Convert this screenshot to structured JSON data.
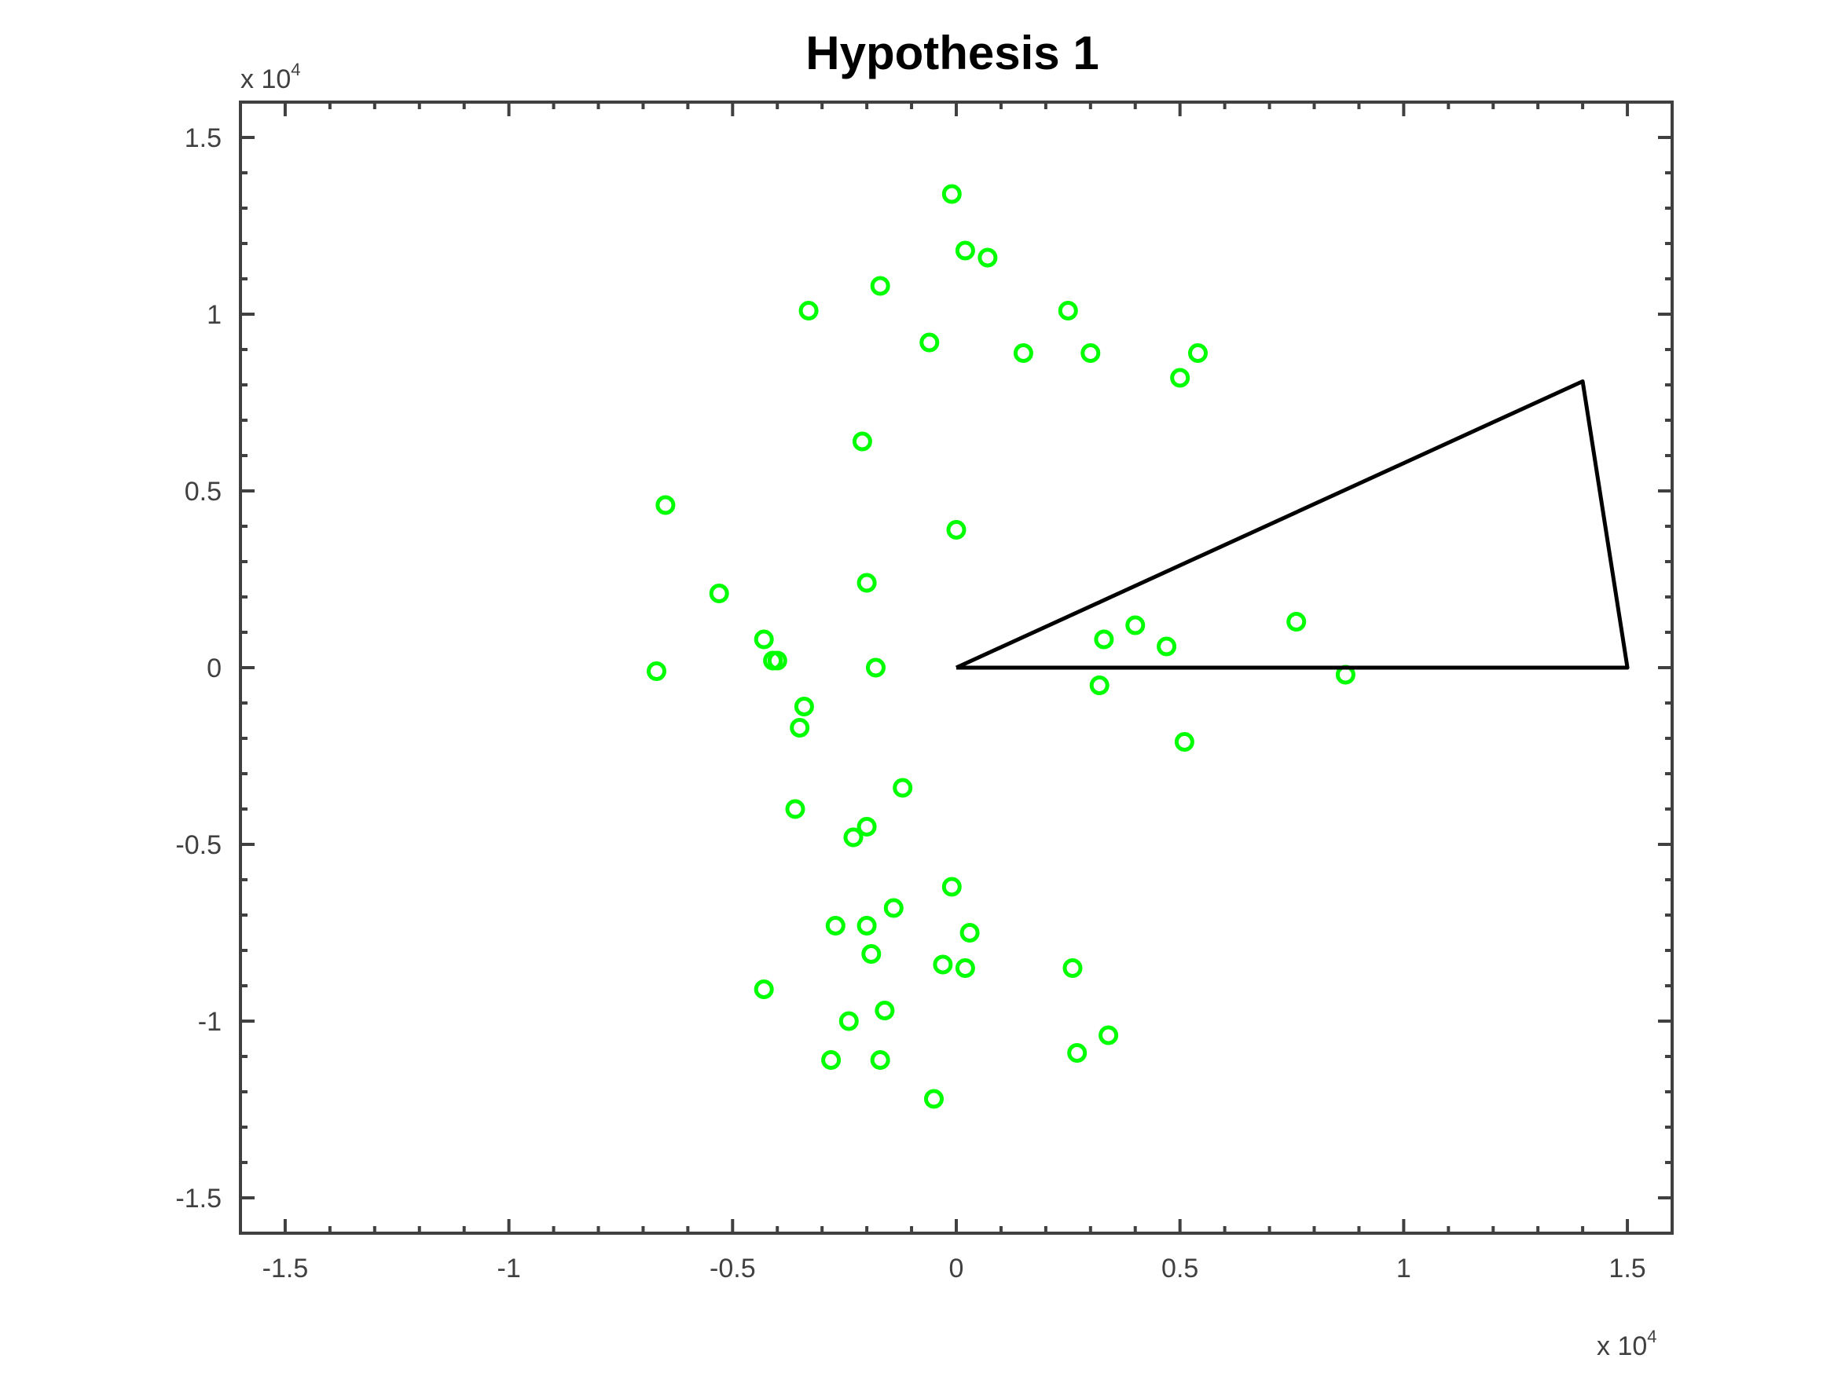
{
  "chart_data": {
    "type": "scatter",
    "title": "Hypothesis 1",
    "xlabel": "",
    "ylabel": "",
    "xlim": [
      -1.6,
      1.6
    ],
    "ylim": [
      -1.6,
      1.6
    ],
    "scale_factor": {
      "base": "x 10",
      "exponent": "4"
    },
    "xticks": [
      -1.5,
      -1,
      -0.5,
      0,
      0.5,
      1,
      1.5
    ],
    "yticks": [
      -1.5,
      -1,
      -0.5,
      0,
      0.5,
      1,
      1.5
    ],
    "xtick_labels": [
      "-1.5",
      "-1",
      "-0.5",
      "0",
      "0.5",
      "1",
      "1.5"
    ],
    "ytick_labels": [
      "-1.5",
      "-1",
      "-0.5",
      "0",
      "0.5",
      "1",
      "1.5"
    ],
    "grid": false,
    "box": true,
    "series": [
      {
        "marker": "circle-open",
        "color": "#00ff00",
        "points": [
          [
            -0.01,
            1.34
          ],
          [
            0.02,
            1.18
          ],
          [
            0.07,
            1.16
          ],
          [
            -0.17,
            1.08
          ],
          [
            -0.33,
            1.01
          ],
          [
            0.25,
            1.01
          ],
          [
            -0.06,
            0.92
          ],
          [
            0.15,
            0.89
          ],
          [
            0.3,
            0.89
          ],
          [
            0.54,
            0.89
          ],
          [
            0.5,
            0.82
          ],
          [
            -0.21,
            0.64
          ],
          [
            -0.65,
            0.46
          ],
          [
            0.0,
            0.39
          ],
          [
            -0.2,
            0.24
          ],
          [
            -0.53,
            0.21
          ],
          [
            -0.43,
            0.08
          ],
          [
            -0.41,
            0.02
          ],
          [
            -0.4,
            0.02
          ],
          [
            -0.67,
            -0.01
          ],
          [
            -0.18,
            0.0
          ],
          [
            -0.34,
            -0.11
          ],
          [
            -0.35,
            -0.17
          ],
          [
            -0.12,
            -0.34
          ],
          [
            -0.36,
            -0.4
          ],
          [
            -0.2,
            -0.45
          ],
          [
            -0.23,
            -0.48
          ],
          [
            -0.01,
            -0.62
          ],
          [
            -0.14,
            -0.68
          ],
          [
            -0.27,
            -0.73
          ],
          [
            -0.2,
            -0.73
          ],
          [
            0.03,
            -0.75
          ],
          [
            -0.19,
            -0.81
          ],
          [
            -0.03,
            -0.84
          ],
          [
            0.02,
            -0.85
          ],
          [
            0.26,
            -0.85
          ],
          [
            -0.43,
            -0.91
          ],
          [
            -0.16,
            -0.97
          ],
          [
            -0.24,
            -1.0
          ],
          [
            0.34,
            -1.04
          ],
          [
            0.27,
            -1.09
          ],
          [
            -0.28,
            -1.11
          ],
          [
            -0.17,
            -1.11
          ],
          [
            -0.05,
            -1.22
          ],
          [
            0.33,
            0.08
          ],
          [
            0.4,
            0.12
          ],
          [
            0.47,
            0.06
          ],
          [
            0.76,
            0.13
          ],
          [
            0.87,
            -0.02
          ],
          [
            0.32,
            -0.05
          ],
          [
            0.51,
            -0.21
          ]
        ]
      },
      {
        "marker": "line",
        "color": "#000000",
        "closed": true,
        "points": [
          [
            0,
            0
          ],
          [
            1.4,
            0.81
          ],
          [
            1.5,
            0.0
          ],
          [
            0,
            0
          ]
        ]
      }
    ]
  }
}
